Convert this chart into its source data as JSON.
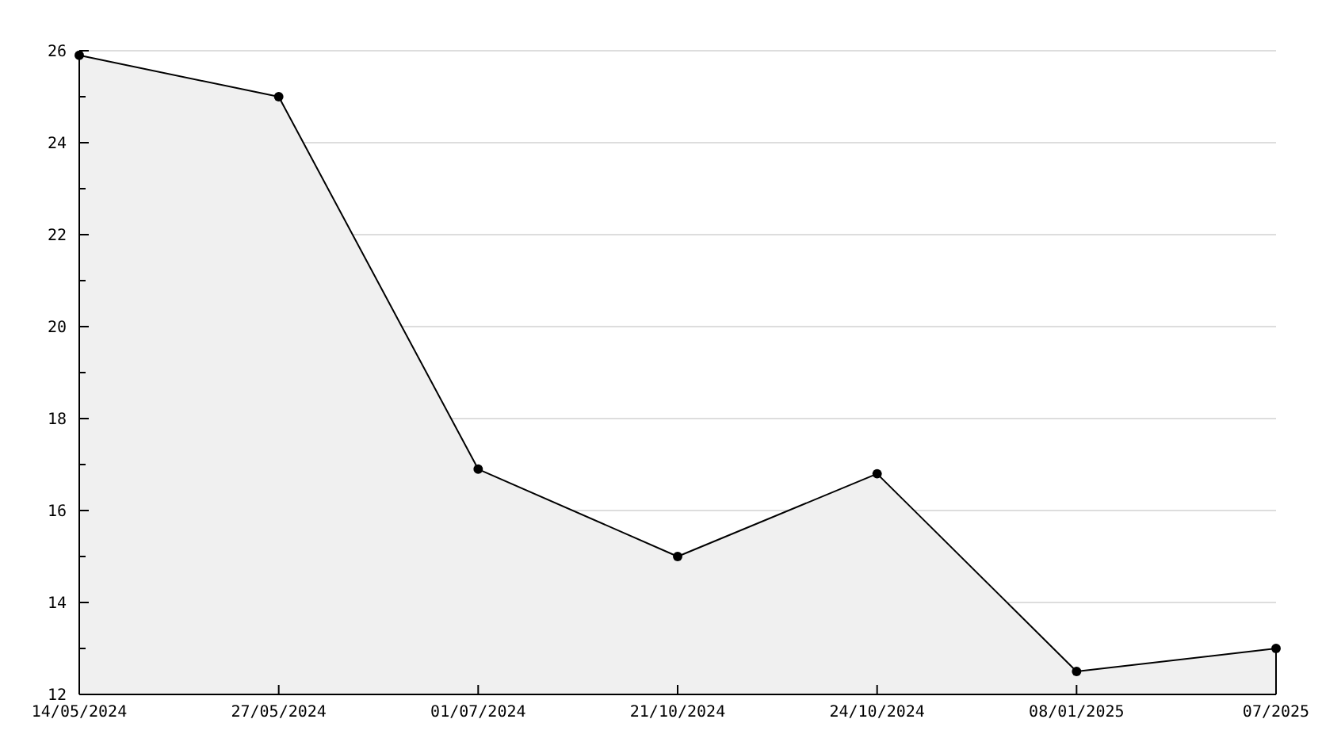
{
  "chart_data": {
    "type": "area",
    "categories": [
      "14/05/2024",
      "27/05/2024",
      "01/07/2024",
      "21/10/2024",
      "24/10/2024",
      "08/01/2025",
      "07/2025"
    ],
    "series": [
      {
        "color": "#000000",
        "values": [
          25.9,
          25,
          16.9,
          15,
          16.8,
          12.5,
          13
        ]
      }
    ],
    "ylim": [
      12,
      26
    ],
    "yticks": [
      12,
      {
        "value": 13,
        "label": null
      },
      14,
      {
        "value": 15,
        "label": null
      },
      16,
      {
        "value": 17,
        "label": null
      },
      18,
      {
        "value": 19,
        "label": null
      },
      20,
      {
        "value": 21,
        "label": null
      },
      22,
      {
        "value": 23,
        "label": null
      },
      24,
      {
        "value": 25,
        "label": null
      },
      26
    ],
    "grid": "y",
    "marker": "circle",
    "line_style": "solid"
  }
}
